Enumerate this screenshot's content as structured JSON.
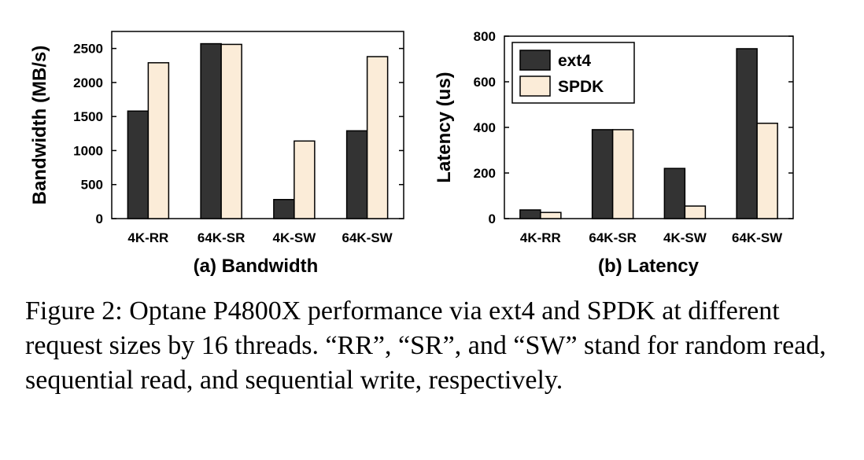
{
  "chart_data": [
    {
      "type": "bar",
      "categories": [
        "4K-RR",
        "64K-SR",
        "4K-SW",
        "64K-SW"
      ],
      "series": [
        {
          "name": "ext4",
          "values": [
            1580,
            2570,
            280,
            1290
          ]
        },
        {
          "name": "SPDK",
          "values": [
            2290,
            2560,
            1140,
            2380
          ]
        }
      ],
      "ylabel": "Bandwidth (MB/s)",
      "ylim": [
        0,
        2750
      ],
      "yticks": [
        0,
        500,
        1000,
        1500,
        2000,
        2500
      ],
      "subtitle": "(a) Bandwidth",
      "legend": "none"
    },
    {
      "type": "bar",
      "categories": [
        "4K-RR",
        "64K-SR",
        "4K-SW",
        "64K-SW"
      ],
      "series": [
        {
          "name": "ext4",
          "values": [
            38,
            390,
            220,
            745
          ]
        },
        {
          "name": "SPDK",
          "values": [
            27,
            390,
            55,
            418
          ]
        }
      ],
      "ylabel": "Latency (us)",
      "ylim": [
        0,
        800
      ],
      "yticks": [
        0,
        200,
        400,
        600,
        800
      ],
      "subtitle": "(b) Latency",
      "legend": "top-left"
    }
  ],
  "colors": {
    "ext4": "#333333",
    "SPDK": "#fbecd8",
    "stroke": "#000000"
  },
  "caption": "Figure 2: Optane P4800X performance via ext4 and SPDK at different request sizes by 16 threads. “RR”, “SR”, and “SW” stand for random read, sequential read, and sequential write, respectively."
}
